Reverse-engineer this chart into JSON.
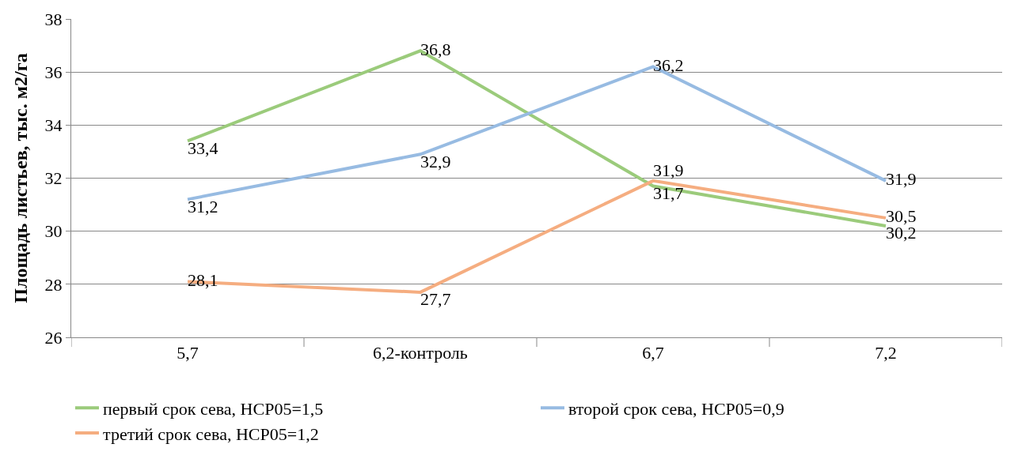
{
  "chart_data": {
    "type": "line",
    "ylabel": "Площадь листьев, тыс. м2/га",
    "categories": [
      "5,7",
      "6,2-контроль",
      "6,7",
      "7,2"
    ],
    "series": [
      {
        "name": "первый срок сева, НСР05=1,5",
        "color": "#9bcb7b",
        "values": [
          33.4,
          36.8,
          31.7,
          30.2
        ],
        "value_labels": [
          "33,4",
          "36,8",
          "31,7",
          "30,2"
        ]
      },
      {
        "name": "второй срок сева, НСР05=0,9",
        "color": "#97bbe2",
        "values": [
          31.2,
          32.9,
          36.2,
          31.9
        ],
        "value_labels": [
          "31,2",
          "32,9",
          "36,2",
          "31,9"
        ]
      },
      {
        "name": "третий срок сева, НСР05=1,2",
        "color": "#f5ad80",
        "values": [
          28.1,
          27.7,
          31.9,
          30.5
        ],
        "value_labels": [
          "28,1",
          "27,7",
          "31,9",
          "30,5"
        ]
      }
    ],
    "ylim": [
      26,
      38
    ],
    "yticks": [
      26,
      28,
      30,
      32,
      34,
      36,
      38
    ],
    "grid": "y",
    "legend": "bottom",
    "marker": "none",
    "line_style": "solid"
  }
}
